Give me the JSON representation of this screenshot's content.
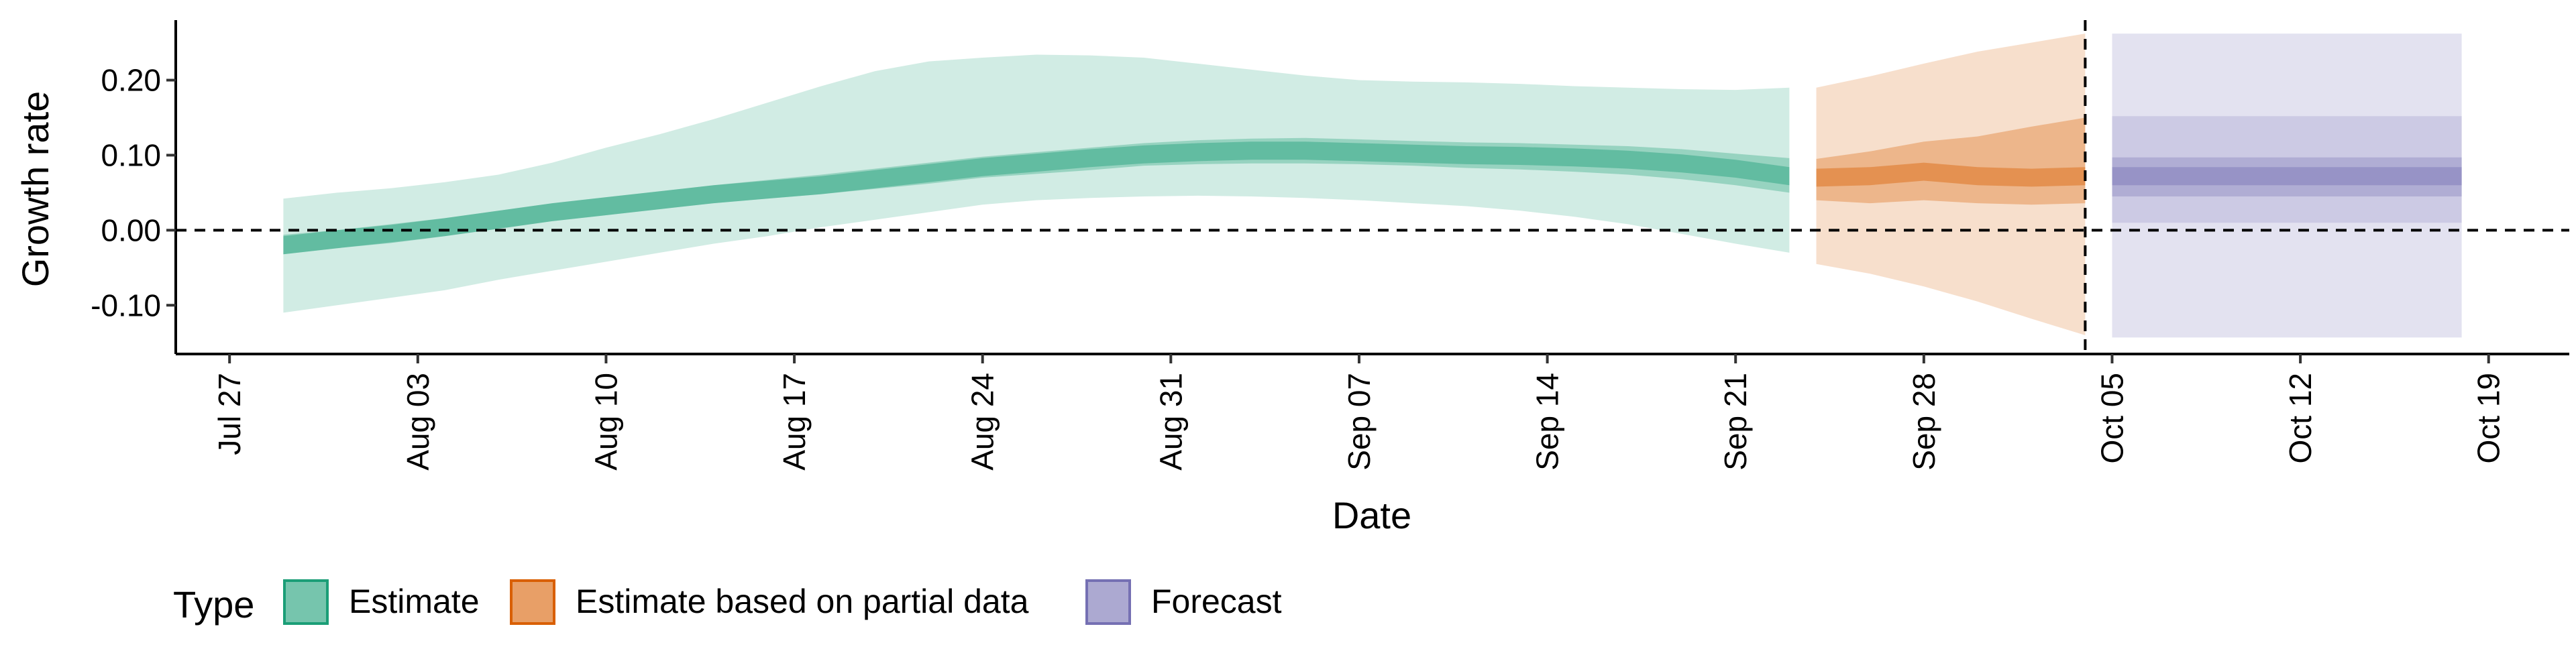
{
  "chart_data": {
    "type": "area",
    "xlabel": "Date",
    "ylabel": "Growth rate",
    "x_ticks": [
      "Jul 27",
      "Aug 03",
      "Aug 10",
      "Aug 17",
      "Aug 24",
      "Aug 31",
      "Sep 07",
      "Sep 14",
      "Sep 21",
      "Sep 28",
      "Oct 05",
      "Oct 12",
      "Oct 19"
    ],
    "y_ticks": [
      "-0.10",
      "0.00",
      "0.10",
      "0.20"
    ],
    "ylim": [
      -0.165,
      0.28
    ],
    "xlim": [
      "2020-07-25",
      "2020-10-22"
    ],
    "grid": false,
    "legend_title": "Type",
    "legend_position": "bottom-left",
    "reference_lines": {
      "horizontal_y": 0.0,
      "vertical_date": "2020-10-04"
    },
    "colors": {
      "Estimate": "#1b9e77",
      "Estimate based on partial data": "#d95f02",
      "Forecast": "#7570b3"
    },
    "series": [
      {
        "name": "Estimate",
        "x": [
          "2020-07-29",
          "2020-07-31",
          "2020-08-02",
          "2020-08-04",
          "2020-08-06",
          "2020-08-08",
          "2020-08-10",
          "2020-08-12",
          "2020-08-14",
          "2020-08-16",
          "2020-08-18",
          "2020-08-20",
          "2020-08-22",
          "2020-08-24",
          "2020-08-26",
          "2020-08-28",
          "2020-08-30",
          "2020-09-01",
          "2020-09-03",
          "2020-09-05",
          "2020-09-07",
          "2020-09-09",
          "2020-09-11",
          "2020-09-13",
          "2020-09-15",
          "2020-09-17",
          "2020-09-19",
          "2020-09-21",
          "2020-09-23"
        ],
        "median": [
          -0.02,
          -0.012,
          -0.005,
          0.004,
          0.014,
          0.024,
          0.032,
          0.04,
          0.048,
          0.054,
          0.06,
          0.068,
          0.076,
          0.084,
          0.09,
          0.096,
          0.101,
          0.104,
          0.106,
          0.106,
          0.104,
          0.102,
          0.1,
          0.099,
          0.097,
          0.094,
          0.089,
          0.082,
          0.072
        ],
        "lower_50": [
          -0.032,
          -0.024,
          -0.016,
          -0.008,
          0.002,
          0.012,
          0.02,
          0.028,
          0.036,
          0.042,
          0.048,
          0.055,
          0.062,
          0.07,
          0.075,
          0.08,
          0.086,
          0.088,
          0.089,
          0.089,
          0.088,
          0.086,
          0.083,
          0.081,
          0.078,
          0.074,
          0.068,
          0.06,
          0.05
        ],
        "upper_50": [
          -0.006,
          0.0,
          0.008,
          0.016,
          0.026,
          0.036,
          0.044,
          0.052,
          0.06,
          0.067,
          0.074,
          0.082,
          0.09,
          0.098,
          0.104,
          0.11,
          0.116,
          0.12,
          0.122,
          0.123,
          0.121,
          0.119,
          0.117,
          0.116,
          0.114,
          0.112,
          0.108,
          0.102,
          0.096
        ],
        "lower_90": [
          -0.11,
          -0.1,
          -0.09,
          -0.08,
          -0.066,
          -0.054,
          -0.042,
          -0.03,
          -0.018,
          -0.008,
          0.004,
          0.014,
          0.024,
          0.034,
          0.04,
          0.043,
          0.045,
          0.046,
          0.045,
          0.043,
          0.04,
          0.036,
          0.032,
          0.026,
          0.018,
          0.008,
          -0.005,
          -0.018,
          -0.03
        ],
        "upper_90": [
          0.042,
          0.05,
          0.056,
          0.064,
          0.074,
          0.09,
          0.11,
          0.128,
          0.148,
          0.17,
          0.192,
          0.212,
          0.225,
          0.23,
          0.234,
          0.233,
          0.23,
          0.222,
          0.214,
          0.206,
          0.2,
          0.198,
          0.197,
          0.195,
          0.192,
          0.19,
          0.188,
          0.187,
          0.19
        ]
      },
      {
        "name": "Estimate based on partial data",
        "x": [
          "2020-09-24",
          "2020-09-26",
          "2020-09-28",
          "2020-09-30",
          "2020-10-02",
          "2020-10-04"
        ],
        "median": [
          0.07,
          0.072,
          0.078,
          0.072,
          0.07,
          0.072
        ],
        "lower_50": [
          0.04,
          0.036,
          0.04,
          0.036,
          0.034,
          0.036
        ],
        "upper_50": [
          0.095,
          0.105,
          0.118,
          0.125,
          0.138,
          0.15
        ],
        "lower_90": [
          -0.045,
          -0.058,
          -0.075,
          -0.095,
          -0.118,
          -0.14
        ],
        "upper_90": [
          0.19,
          0.205,
          0.222,
          0.238,
          0.25,
          0.262
        ]
      },
      {
        "name": "Forecast",
        "x": [
          "2020-10-05",
          "2020-10-18"
        ],
        "median": [
          0.072,
          0.072
        ],
        "lower_50": [
          0.045,
          0.045
        ],
        "upper_50": [
          0.097,
          0.097
        ],
        "lower_90": [
          0.01,
          0.01
        ],
        "upper_90": [
          0.152,
          0.152
        ],
        "lower_outer": [
          -0.143,
          -0.143
        ],
        "upper_outer": [
          0.262,
          0.262
        ]
      }
    ]
  }
}
